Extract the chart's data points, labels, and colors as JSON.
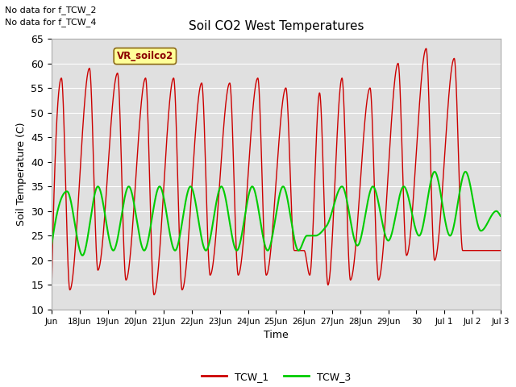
{
  "title": "Soil CO2 West Temperatures",
  "xlabel": "Time",
  "ylabel": "Soil Temperature (C)",
  "ylim": [
    10,
    65
  ],
  "yticks": [
    10,
    15,
    20,
    25,
    30,
    35,
    40,
    45,
    50,
    55,
    60,
    65
  ],
  "no_data_texts": [
    "No data for f_TCW_2",
    "No data for f_TCW_4"
  ],
  "vr_label": "VR_soilco2",
  "background_color": "#e0e0e0",
  "line1_color": "#cc0000",
  "line2_color": "#00cc00",
  "line1_label": "TCW_1",
  "line2_label": "TCW_3",
  "x_tick_labels": [
    "Jun",
    "18Jun",
    "19Jun",
    "20Jun",
    "21Jun",
    "22Jun",
    "23Jun",
    "24Jun",
    "25Jun",
    "26Jun",
    "27Jun",
    "28Jun",
    "29Jun",
    "30",
    "Jul 1",
    "Jul 2",
    "Jul 3"
  ],
  "figsize": [
    6.4,
    4.8
  ],
  "dpi": 100
}
